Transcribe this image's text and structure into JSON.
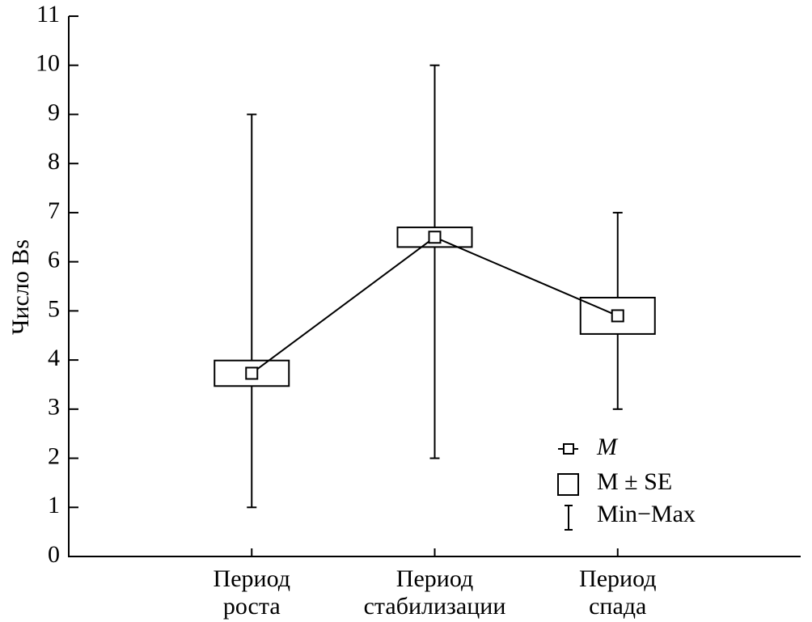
{
  "chart_data": {
    "type": "mean-se-range",
    "ylabel": "Число Bs",
    "categories": [
      [
        "Период",
        "роста"
      ],
      [
        "Период",
        "стабилизации"
      ],
      [
        "Период",
        "спада"
      ]
    ],
    "series": {
      "mean": [
        3.73,
        6.5,
        4.9
      ],
      "se": [
        0.26,
        0.2,
        0.37
      ],
      "min": [
        1,
        2,
        3
      ],
      "max": [
        9,
        10,
        7
      ]
    },
    "legend": [
      "M",
      "M ± SE",
      "Min−Max"
    ],
    "ylim": [
      0,
      11
    ],
    "yticks": [
      0,
      1,
      2,
      3,
      4,
      5,
      6,
      7,
      8,
      9,
      10,
      11
    ],
    "color": "#000000"
  }
}
